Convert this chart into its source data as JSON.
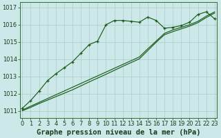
{
  "bg_color": "#cce8e8",
  "grid_color": "#b0d0d0",
  "line_color": "#1a5c1a",
  "title": "Graphe pression niveau de la mer (hPa)",
  "xlim": [
    -0.3,
    23.3
  ],
  "ylim": [
    1010.6,
    1017.3
  ],
  "yticks": [
    1011,
    1012,
    1013,
    1014,
    1015,
    1016,
    1017
  ],
  "xticks": [
    0,
    1,
    2,
    3,
    4,
    5,
    6,
    7,
    8,
    9,
    10,
    11,
    12,
    13,
    14,
    15,
    16,
    17,
    18,
    19,
    20,
    21,
    22,
    23
  ],
  "wavy_line": [
    1011.15,
    1011.6,
    1012.15,
    1012.75,
    1013.15,
    1013.5,
    1013.85,
    1014.35,
    1014.85,
    1015.05,
    1016.0,
    1016.25,
    1016.25,
    1016.2,
    1016.15,
    1016.45,
    1016.25,
    1015.8,
    1015.85,
    1015.95,
    1016.15,
    1016.6,
    1016.75,
    1016.35
  ],
  "straight_line1": [
    1011.05,
    1011.27,
    1011.49,
    1011.71,
    1011.93,
    1012.15,
    1012.37,
    1012.59,
    1012.81,
    1013.03,
    1013.25,
    1013.47,
    1013.69,
    1013.91,
    1014.13,
    1014.6,
    1015.05,
    1015.5,
    1015.7,
    1015.85,
    1016.0,
    1016.2,
    1016.5,
    1016.75
  ],
  "straight_line2": [
    1011.0,
    1011.2,
    1011.42,
    1011.62,
    1011.82,
    1012.02,
    1012.22,
    1012.45,
    1012.68,
    1012.9,
    1013.12,
    1013.35,
    1013.58,
    1013.8,
    1014.02,
    1014.5,
    1014.98,
    1015.42,
    1015.6,
    1015.76,
    1015.92,
    1016.12,
    1016.42,
    1016.68
  ],
  "title_fontsize": 7.5,
  "tick_fontsize": 6.0
}
